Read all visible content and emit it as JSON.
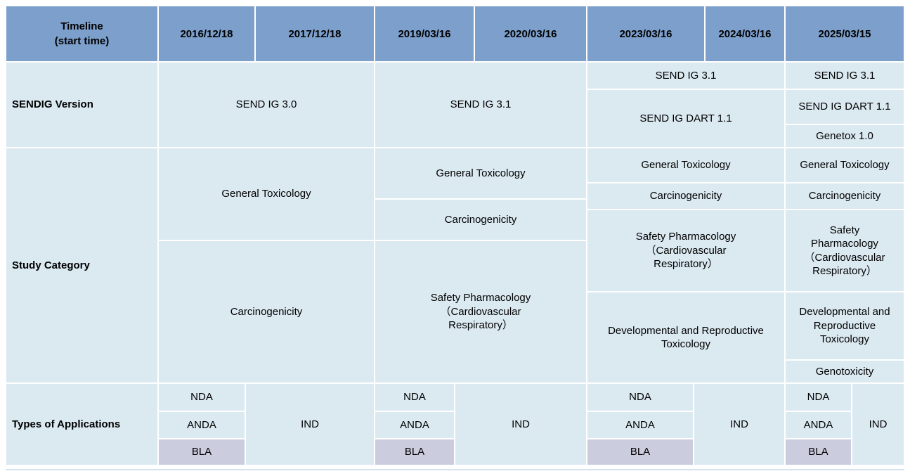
{
  "header": {
    "timeline_label": "Timeline\n(start time)",
    "dates": [
      "2016/12/18",
      "2017/12/18",
      "2019/03/16",
      "2020/03/16",
      "2023/03/16",
      "2024/03/16",
      "2025/03/15"
    ]
  },
  "sendig_version": {
    "label": "SENDIG Version",
    "group_2016_2017": "SEND IG 3.0",
    "group_2019_2020": "SEND IG 3.1",
    "group_2023_2024": [
      "SEND IG 3.1",
      "SEND IG DART 1.1"
    ],
    "group_2025": [
      "SEND IG 3.1",
      "SEND IG DART 1.1",
      "Genetox 1.0"
    ]
  },
  "study_category": {
    "label": "Study Category",
    "group_2016_2017": [
      "General Toxicology",
      "Carcinogenicity"
    ],
    "group_2019_2020": [
      "General Toxicology",
      "Carcinogenicity",
      "Safety Pharmacology\n（Cardiovascular\nRespiratory）"
    ],
    "group_2023_2024": [
      "General Toxicology",
      "Carcinogenicity",
      "Safety Pharmacology\n（Cardiovascular\nRespiratory）",
      "Developmental and Reproductive\nToxicology"
    ],
    "group_2025": [
      "General Toxicology",
      "Carcinogenicity",
      "Safety\nPharmacology\n（Cardiovascular\nRespiratory）",
      "Developmental and\nReproductive\nToxicology",
      "Genotoxicity"
    ]
  },
  "applications": {
    "label": "Types of Applications",
    "group_2016_2017": {
      "nda": "NDA",
      "anda": "ANDA",
      "bla": "BLA",
      "ind": "IND"
    },
    "group_2019_2020": {
      "nda": "NDA",
      "anda": "ANDA",
      "bla": "BLA",
      "ind": "IND"
    },
    "group_2023_2024": {
      "nda": "NDA",
      "anda": "ANDA",
      "bla": "BLA",
      "ind": "IND"
    },
    "group_2025": {
      "nda": "NDA",
      "anda": "ANDA",
      "bla": "BLA",
      "ind": "IND"
    }
  },
  "colors": {
    "header_bg": "#7c9fcb",
    "cell_bg": "#dbe9f1",
    "bla_bg": "#ccccdf",
    "grid_line": "#ffffff",
    "outer_border": "#d6e3ef",
    "text": "#000000"
  }
}
